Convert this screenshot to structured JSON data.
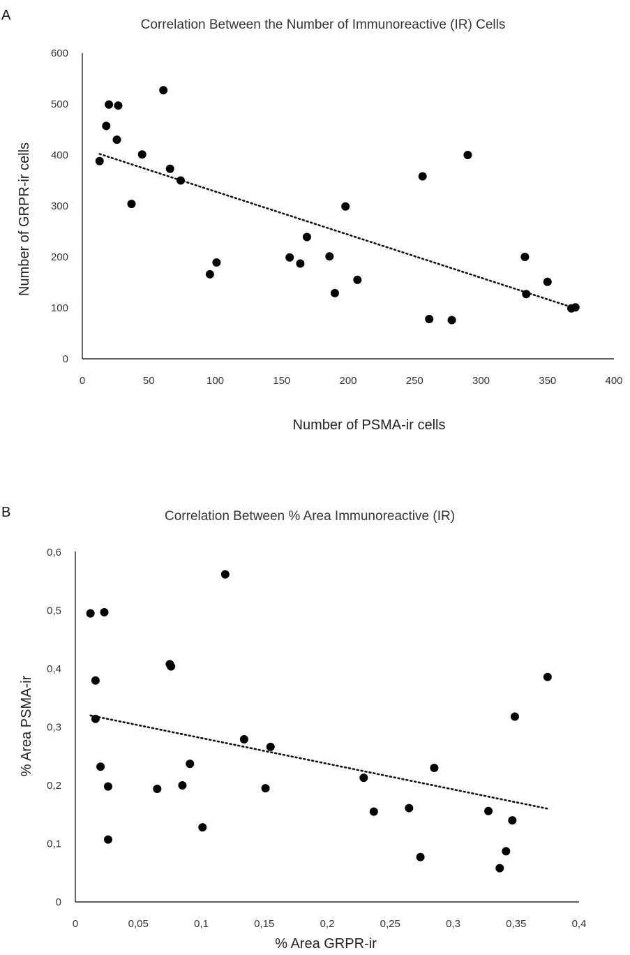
{
  "chart_data": [
    {
      "type": "scatter",
      "panel": "A",
      "title": "Correlation Between the Number of Immunoreactive (IR) Cells",
      "xlabel": "Number of PSMA-ir cells",
      "ylabel": "Number of GRPR-ir cells",
      "xlim": [
        0,
        400
      ],
      "ylim": [
        0,
        600
      ],
      "xticks": [
        "0",
        "50",
        "100",
        "150",
        "200",
        "250",
        "300",
        "350",
        "400"
      ],
      "yticks": [
        "0",
        "100",
        "200",
        "300",
        "400",
        "500",
        "600"
      ],
      "points": [
        [
          13,
          388
        ],
        [
          18,
          457
        ],
        [
          20,
          499
        ],
        [
          26,
          430
        ],
        [
          27,
          497
        ],
        [
          37,
          304
        ],
        [
          45,
          401
        ],
        [
          61,
          527
        ],
        [
          66,
          373
        ],
        [
          74,
          350
        ],
        [
          96,
          166
        ],
        [
          101,
          189
        ],
        [
          156,
          199
        ],
        [
          164,
          187
        ],
        [
          169,
          239
        ],
        [
          186,
          201
        ],
        [
          190,
          129
        ],
        [
          198,
          299
        ],
        [
          207,
          155
        ],
        [
          256,
          358
        ],
        [
          261,
          78
        ],
        [
          278,
          76
        ],
        [
          290,
          400
        ],
        [
          333,
          200
        ],
        [
          334,
          127
        ],
        [
          350,
          151
        ],
        [
          368,
          99
        ],
        [
          371,
          101
        ]
      ],
      "trendline": {
        "style": "dotted",
        "x": [
          13,
          371
        ],
        "y": [
          402,
          99
        ]
      }
    },
    {
      "type": "scatter",
      "panel": "B",
      "title": "Correlation Between % Area Immunoreactive (IR)",
      "xlabel": "% Area GRPR-ir",
      "ylabel": "% Area PSMA-ir",
      "xlim": [
        0,
        0.4
      ],
      "ylim": [
        0,
        0.6
      ],
      "xticks": [
        "0",
        "0,05",
        "0,1",
        "0,15",
        "0,2",
        "0,25",
        "0,3",
        "0,35",
        "0,4"
      ],
      "yticks": [
        "0",
        "0,1",
        "0,2",
        "0,3",
        "0,4",
        "0,5",
        "0,6"
      ],
      "points": [
        [
          0.012,
          0.495
        ],
        [
          0.016,
          0.38
        ],
        [
          0.016,
          0.314
        ],
        [
          0.02,
          0.232
        ],
        [
          0.023,
          0.497
        ],
        [
          0.026,
          0.198
        ],
        [
          0.026,
          0.107
        ],
        [
          0.065,
          0.194
        ],
        [
          0.075,
          0.408
        ],
        [
          0.076,
          0.404
        ],
        [
          0.085,
          0.2
        ],
        [
          0.091,
          0.237
        ],
        [
          0.101,
          0.128
        ],
        [
          0.119,
          0.562
        ],
        [
          0.134,
          0.279
        ],
        [
          0.151,
          0.195
        ],
        [
          0.155,
          0.266
        ],
        [
          0.229,
          0.213
        ],
        [
          0.237,
          0.155
        ],
        [
          0.265,
          0.161
        ],
        [
          0.274,
          0.077
        ],
        [
          0.285,
          0.23
        ],
        [
          0.328,
          0.156
        ],
        [
          0.337,
          0.058
        ],
        [
          0.342,
          0.087
        ],
        [
          0.347,
          0.14
        ],
        [
          0.349,
          0.318
        ],
        [
          0.375,
          0.386
        ]
      ],
      "trendline": {
        "style": "dotted",
        "x": [
          0.012,
          0.375
        ],
        "y": [
          0.32,
          0.16
        ]
      }
    }
  ]
}
